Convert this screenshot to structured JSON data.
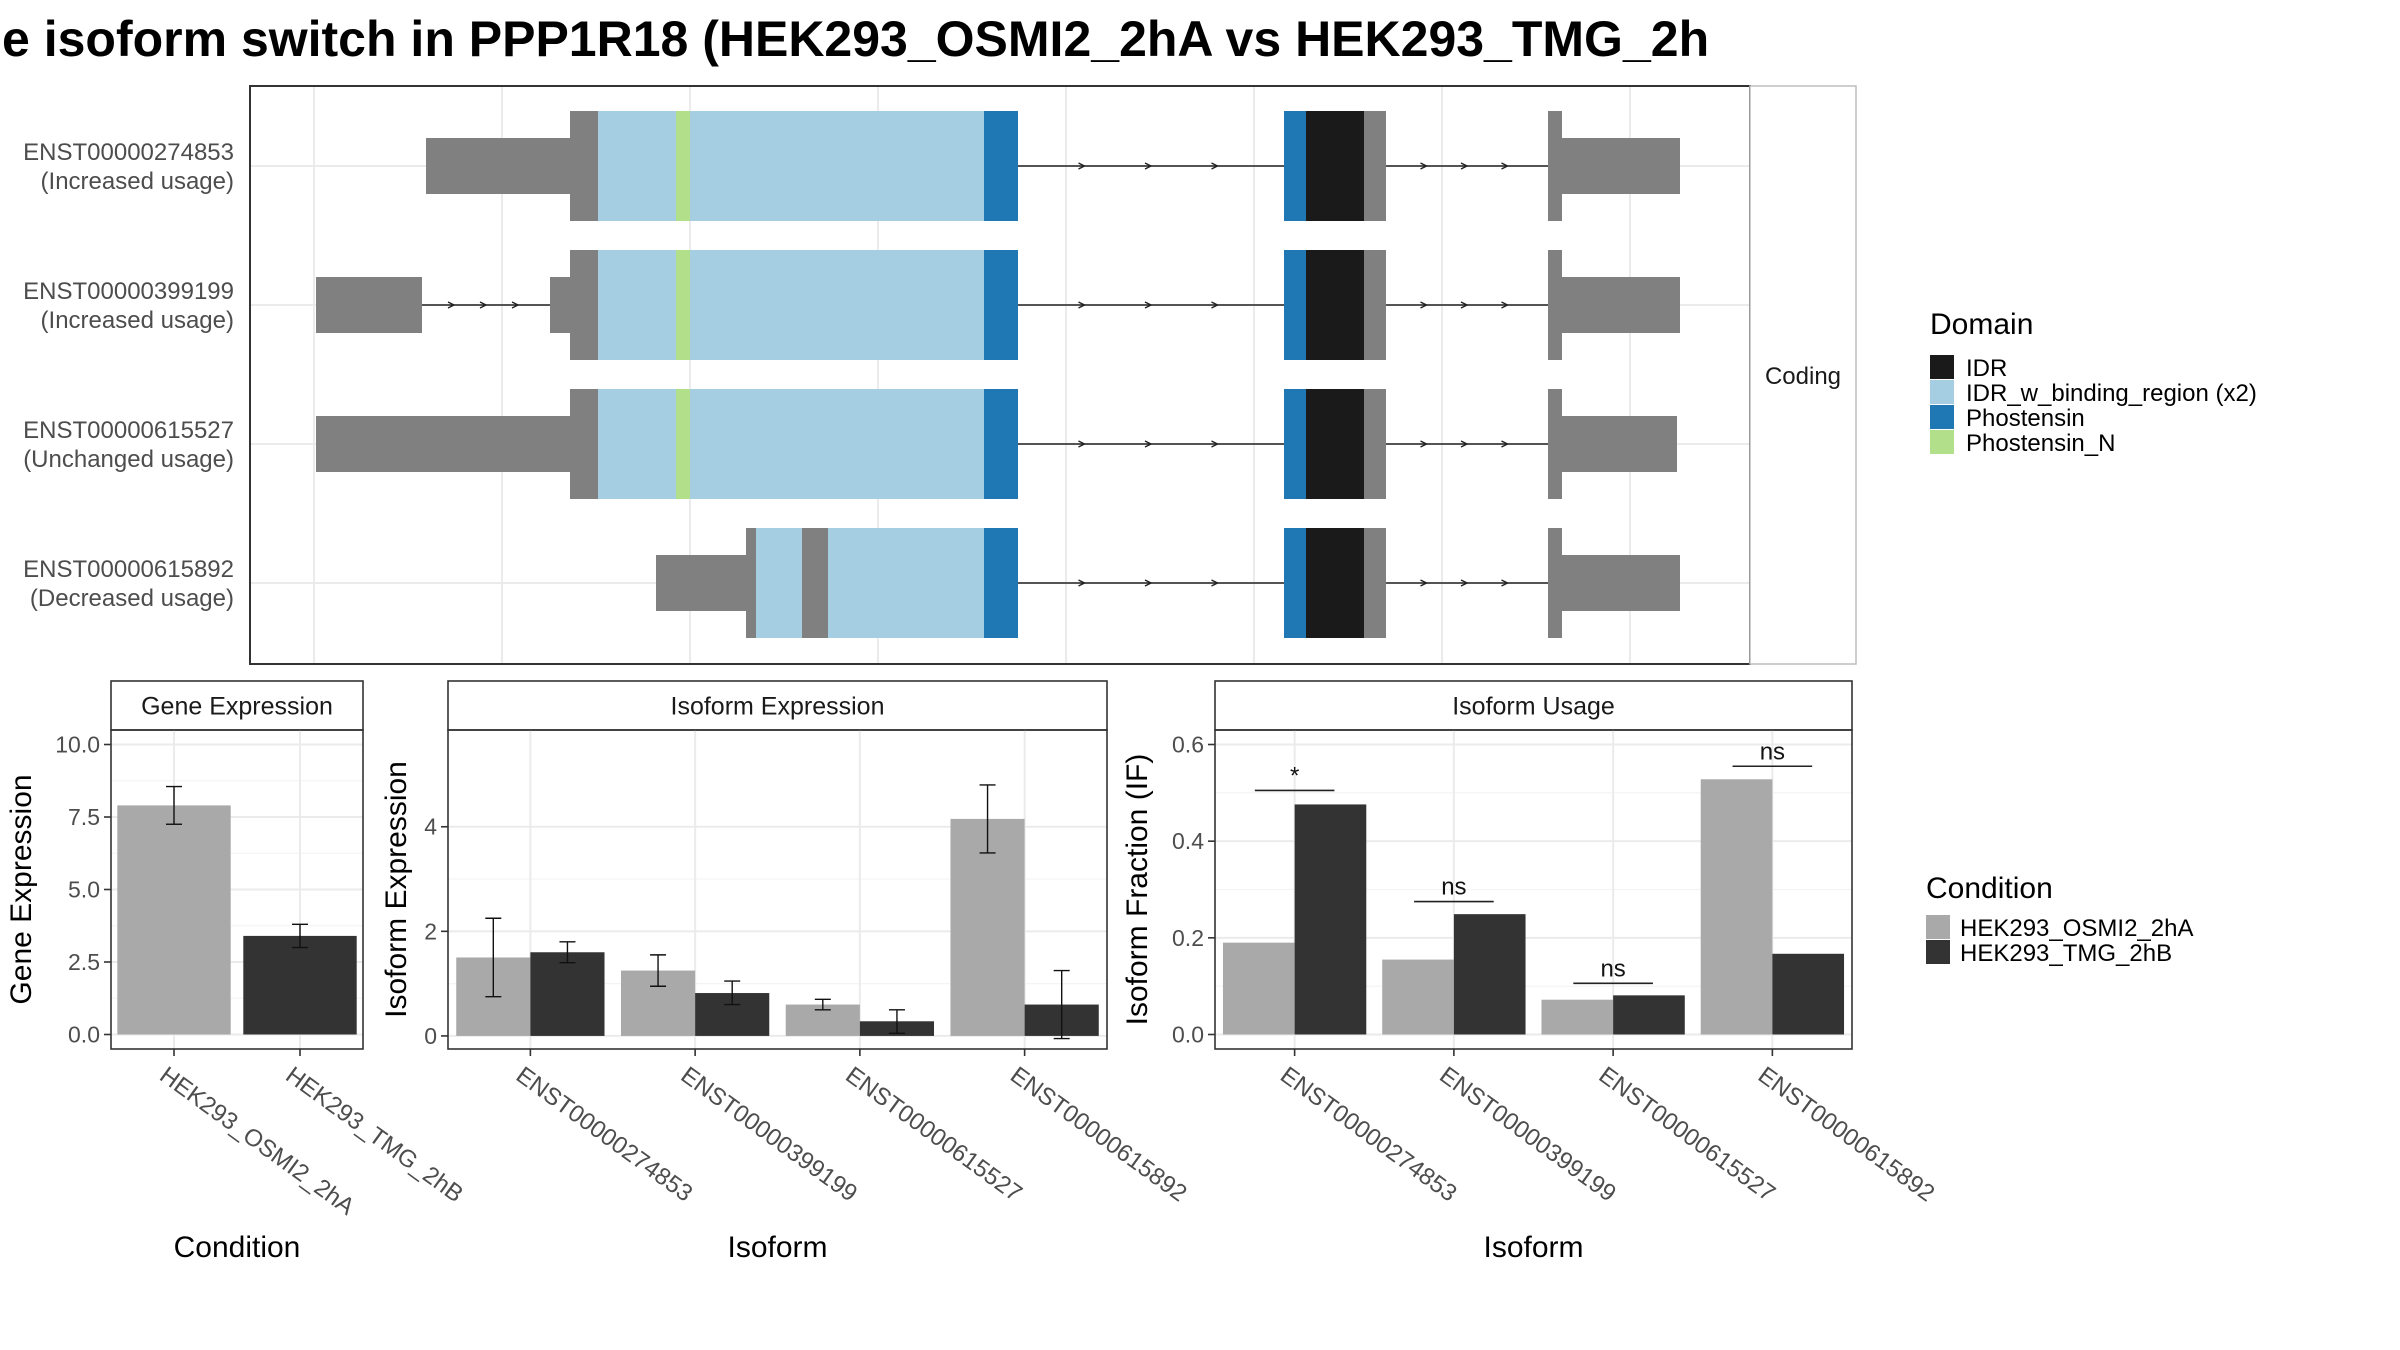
{
  "title": "e isoform switch in PPP1R18 (HEK293_OSMI2_2hA vs HEK293_TMG_2h",
  "colors": {
    "IDR": "#1a1a1a",
    "IDR_w_binding_region": "#a6cee3",
    "Phostensin": "#1f78b4",
    "Phostensin_N": "#b2df8a",
    "utr": "#808080",
    "cond1": "#a9a9a9",
    "cond2": "#333333"
  },
  "structure_panel": {
    "strip_label": "Coding",
    "legend_title": "Domain",
    "legend_items": [
      {
        "label": "IDR",
        "key": "IDR"
      },
      {
        "label": "IDR_w_binding_region (x2)",
        "key": "IDR_w_binding_region"
      },
      {
        "label": "Phostensin",
        "key": "Phostensin"
      },
      {
        "label": "Phostensin_N",
        "key": "Phostensin_N"
      }
    ],
    "isoforms": [
      {
        "id": "ENST00000274853",
        "usage": "(Increased usage)"
      },
      {
        "id": "ENST00000399199",
        "usage": "(Increased usage)"
      },
      {
        "id": "ENST00000615527",
        "usage": "(Unchanged usage)"
      },
      {
        "id": "ENST00000615892",
        "usage": "(Decreased usage)"
      }
    ]
  },
  "chart_data": [
    {
      "type": "bar",
      "panel": "Gene Expression",
      "title": "Gene Expression",
      "xlabel": "Condition",
      "ylabel": "Gene Expression",
      "categories": [
        "HEK293_OSMI2_2hA",
        "HEK293_TMG_2hB"
      ],
      "values": [
        7.9,
        3.4
      ],
      "error_low": [
        7.25,
        3.0
      ],
      "error_high": [
        8.55,
        3.8
      ],
      "ylim": [
        -0.5,
        10.5
      ],
      "yticks": [
        0.0,
        2.5,
        5.0,
        7.5,
        10.0
      ],
      "ytick_labels": [
        "0.0",
        "2.5",
        "5.0",
        "7.5",
        "10.0"
      ]
    },
    {
      "type": "bar",
      "panel": "Isoform Expression",
      "title": "Isoform Expression",
      "xlabel": "Isoform",
      "ylabel": "Isoform Expression",
      "categories": [
        "ENST00000274853",
        "ENST00000399199",
        "ENST00000615527",
        "ENST00000615892"
      ],
      "series": [
        {
          "name": "HEK293_OSMI2_2hA",
          "values": [
            1.5,
            1.25,
            0.6,
            4.15
          ],
          "error_low": [
            0.75,
            0.95,
            0.5,
            3.5
          ],
          "error_high": [
            2.25,
            1.55,
            0.7,
            4.8
          ]
        },
        {
          "name": "HEK293_TMG_2hB",
          "values": [
            1.6,
            0.82,
            0.28,
            0.6
          ],
          "error_low": [
            1.4,
            0.6,
            0.05,
            -0.05
          ],
          "error_high": [
            1.8,
            1.05,
            0.5,
            1.25
          ]
        }
      ],
      "ylim": [
        -0.25,
        5.85
      ],
      "yticks": [
        0,
        2,
        4
      ],
      "ytick_labels": [
        "0",
        "2",
        "4"
      ]
    },
    {
      "type": "bar",
      "panel": "Isoform Usage",
      "title": "Isoform Usage",
      "xlabel": "Isoform",
      "ylabel": "Isoform Fraction (IF)",
      "categories": [
        "ENST00000274853",
        "ENST00000399199",
        "ENST00000615527",
        "ENST00000615892"
      ],
      "series": [
        {
          "name": "HEK293_OSMI2_2hA",
          "values": [
            0.19,
            0.155,
            0.072,
            0.528
          ]
        },
        {
          "name": "HEK293_TMG_2hB",
          "values": [
            0.476,
            0.249,
            0.081,
            0.167
          ]
        }
      ],
      "significance": [
        {
          "label": "*",
          "y": 0.505
        },
        {
          "label": "ns",
          "y": 0.275
        },
        {
          "label": "ns",
          "y": 0.106
        },
        {
          "label": "ns",
          "y": 0.555
        }
      ],
      "ylim": [
        -0.03,
        0.63
      ],
      "yticks": [
        0.0,
        0.2,
        0.4,
        0.6
      ],
      "ytick_labels": [
        "0.0",
        "0.2",
        "0.4",
        "0.6"
      ]
    }
  ],
  "condition_legend": {
    "title": "Condition",
    "items": [
      {
        "label": "HEK293_OSMI2_2hA",
        "key": "cond1"
      },
      {
        "label": "HEK293_TMG_2hB",
        "key": "cond2"
      }
    ]
  }
}
